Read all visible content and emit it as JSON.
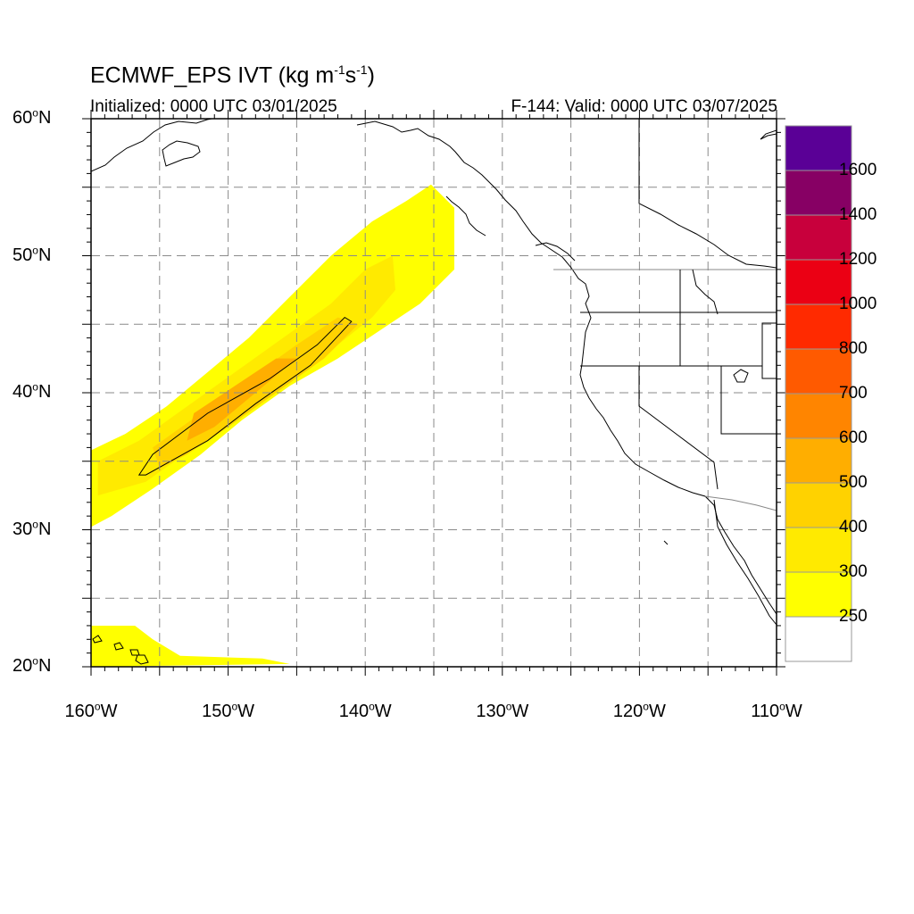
{
  "title": {
    "main": "ECMWF_EPS IVT (kg m",
    "exp1": "-1",
    "mid": "s",
    "exp2": "-1",
    "close": ")"
  },
  "subtitle_left": "Initialized: 0000 UTC 03/01/2025",
  "subtitle_right": "F-144: Valid: 0000 UTC 03/07/2025",
  "map": {
    "projection": "cylindrical equidistant",
    "lon_range": [
      -160,
      -110
    ],
    "lat_range": [
      20,
      60
    ],
    "grid": "dashed gray every 5 degrees",
    "lat_ticks": [
      {
        "value": 60,
        "label": "60",
        "deg": "o",
        "hemi": "N"
      },
      {
        "value": 50,
        "label": "50",
        "deg": "o",
        "hemi": "N"
      },
      {
        "value": 40,
        "label": "40",
        "deg": "o",
        "hemi": "N"
      },
      {
        "value": 30,
        "label": "30",
        "deg": "o",
        "hemi": "N"
      },
      {
        "value": 20,
        "label": "20",
        "deg": "o",
        "hemi": "N"
      }
    ],
    "lon_ticks": [
      {
        "value": -160,
        "label": "160",
        "deg": "o",
        "hemi": "W"
      },
      {
        "value": -150,
        "label": "150",
        "deg": "o",
        "hemi": "W"
      },
      {
        "value": -140,
        "label": "140",
        "deg": "o",
        "hemi": "W"
      },
      {
        "value": -130,
        "label": "130",
        "deg": "o",
        "hemi": "W"
      },
      {
        "value": -120,
        "label": "120",
        "deg": "o",
        "hemi": "W"
      },
      {
        "value": -110,
        "label": "110",
        "deg": "o",
        "hemi": "W"
      }
    ]
  },
  "colorbar": {
    "levels": [
      {
        "color": "#ffffff",
        "label": "250"
      },
      {
        "color": "#ffff00",
        "label": "300"
      },
      {
        "color": "#ffea00",
        "label": "400"
      },
      {
        "color": "#ffd200",
        "label": "500"
      },
      {
        "color": "#ffae00",
        "label": "600"
      },
      {
        "color": "#ff8500",
        "label": "700"
      },
      {
        "color": "#ff5a00",
        "label": "800"
      },
      {
        "color": "#ff2a00",
        "label": "1000"
      },
      {
        "color": "#eb0014",
        "label": "1200"
      },
      {
        "color": "#c8003c",
        "label": "1400"
      },
      {
        "color": "#870064",
        "label": "1600"
      },
      {
        "color": "#5a0096",
        "label": ""
      }
    ]
  },
  "fields": {
    "river": [
      {
        "lon": -135.2,
        "lat": 55.2
      },
      {
        "lon": -133.5,
        "lat": 53.5
      },
      {
        "lon": -133.5,
        "lat": 49.0
      },
      {
        "lon": -136.0,
        "lat": 46.5
      },
      {
        "lon": -139.0,
        "lat": 44.5
      },
      {
        "lon": -142.0,
        "lat": 42.5
      },
      {
        "lon": -145.5,
        "lat": 40.5
      },
      {
        "lon": -149.0,
        "lat": 38.0
      },
      {
        "lon": -152.0,
        "lat": 35.5
      },
      {
        "lon": -155.5,
        "lat": 33.0
      },
      {
        "lon": -158.5,
        "lat": 31.0
      },
      {
        "lon": -160.0,
        "lat": 30.2
      },
      {
        "lon": -160.0,
        "lat": 35.8
      },
      {
        "lon": -157.5,
        "lat": 37.0
      },
      {
        "lon": -154.5,
        "lat": 39.0
      },
      {
        "lon": -151.5,
        "lat": 41.5
      },
      {
        "lon": -148.5,
        "lat": 44.0
      },
      {
        "lon": -145.5,
        "lat": 47.0
      },
      {
        "lon": -142.5,
        "lat": 50.0
      },
      {
        "lon": -139.5,
        "lat": 52.5
      },
      {
        "lon": -137.0,
        "lat": 54.0
      }
    ],
    "river_400": [
      {
        "lon": -138.0,
        "lat": 50.0
      },
      {
        "lon": -137.8,
        "lat": 47.5
      },
      {
        "lon": -139.5,
        "lat": 45.5
      },
      {
        "lon": -142.0,
        "lat": 43.5
      },
      {
        "lon": -145.5,
        "lat": 41.0
      },
      {
        "lon": -149.0,
        "lat": 38.5
      },
      {
        "lon": -152.5,
        "lat": 36.0
      },
      {
        "lon": -156.0,
        "lat": 33.5
      },
      {
        "lon": -159.5,
        "lat": 32.5
      },
      {
        "lon": -159.5,
        "lat": 35.0
      },
      {
        "lon": -156.5,
        "lat": 36.5
      },
      {
        "lon": -153.0,
        "lat": 39.0
      },
      {
        "lon": -149.5,
        "lat": 41.5
      },
      {
        "lon": -146.0,
        "lat": 44.0
      },
      {
        "lon": -142.5,
        "lat": 46.5
      },
      {
        "lon": -140.0,
        "lat": 49.0
      }
    ],
    "river_500": [
      {
        "lon": -140.5,
        "lat": 45.0
      },
      {
        "lon": -143.0,
        "lat": 42.5
      },
      {
        "lon": -146.5,
        "lat": 40.0
      },
      {
        "lon": -150.0,
        "lat": 37.5
      },
      {
        "lon": -153.0,
        "lat": 35.5
      },
      {
        "lon": -155.0,
        "lat": 34.5
      },
      {
        "lon": -155.5,
        "lat": 36.0
      },
      {
        "lon": -152.0,
        "lat": 38.5
      },
      {
        "lon": -148.5,
        "lat": 41.0
      },
      {
        "lon": -145.0,
        "lat": 43.5
      },
      {
        "lon": -142.0,
        "lat": 45.5
      }
    ],
    "river_600": [
      {
        "lon": -145.0,
        "lat": 42.5
      },
      {
        "lon": -148.0,
        "lat": 40.0
      },
      {
        "lon": -151.0,
        "lat": 37.5
      },
      {
        "lon": -153.0,
        "lat": 36.5
      },
      {
        "lon": -152.5,
        "lat": 38.5
      },
      {
        "lon": -149.5,
        "lat": 40.5
      },
      {
        "lon": -146.5,
        "lat": 42.5
      }
    ],
    "river_outline": [
      {
        "lon": -141.0,
        "lat": 45.2
      },
      {
        "lon": -144.0,
        "lat": 42.0
      },
      {
        "lon": -148.0,
        "lat": 39.2
      },
      {
        "lon": -151.5,
        "lat": 36.5
      },
      {
        "lon": -156.0,
        "lat": 34.0
      },
      {
        "lon": -156.5,
        "lat": 34.0
      },
      {
        "lon": -155.5,
        "lat": 35.5
      },
      {
        "lon": -151.5,
        "lat": 38.5
      },
      {
        "lon": -147.0,
        "lat": 41.0
      },
      {
        "lon": -143.5,
        "lat": 43.5
      },
      {
        "lon": -141.5,
        "lat": 45.5
      }
    ],
    "hawaii_band": [
      {
        "lon": -160.0,
        "lat": 23.0
      },
      {
        "lon": -156.8,
        "lat": 23.0
      },
      {
        "lon": -155.5,
        "lat": 22.0
      },
      {
        "lon": -153.5,
        "lat": 20.8
      },
      {
        "lon": -147.5,
        "lat": 20.6
      },
      {
        "lon": -145.5,
        "lat": 20.2
      },
      {
        "lon": -160.0,
        "lat": 20.0
      }
    ]
  }
}
